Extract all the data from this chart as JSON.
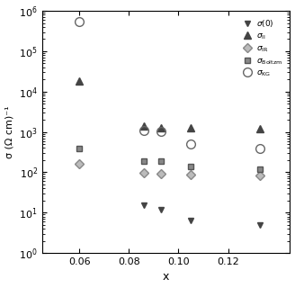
{
  "title": "",
  "xlabel": "x",
  "ylabel": "σ (Ω cm)⁻¹",
  "xlim": [
    0.045,
    0.145
  ],
  "ylim": [
    1.0,
    1000000.0
  ],
  "xticks": [
    0.06,
    0.08,
    0.1,
    0.12
  ],
  "series": {
    "sigma0": {
      "marker": "v",
      "markerfacecolor": "#444444",
      "markeredgecolor": "#444444",
      "markersize": 5,
      "x": [
        0.086,
        0.093,
        0.105,
        0.133
      ],
      "y": [
        15,
        12,
        6.5,
        5
      ]
    },
    "sigma_II": {
      "marker": "^",
      "markerfacecolor": "#444444",
      "markeredgecolor": "#444444",
      "markersize": 6,
      "x": [
        0.06,
        0.086,
        0.093,
        0.105,
        0.133
      ],
      "y": [
        18000,
        1400,
        1250,
        1250,
        1200
      ]
    },
    "sigma_IR": {
      "marker": "D",
      "markerfacecolor": "#bbbbbb",
      "markeredgecolor": "#888888",
      "markersize": 5,
      "x": [
        0.06,
        0.086,
        0.093,
        0.105,
        0.133
      ],
      "y": [
        160,
        95,
        90,
        88,
        82
      ]
    },
    "sigma_Boltzm": {
      "marker": "s",
      "markerfacecolor": "#888888",
      "markeredgecolor": "#555555",
      "markersize": 5,
      "x": [
        0.06,
        0.086,
        0.093,
        0.105,
        0.133
      ],
      "y": [
        380,
        190,
        185,
        140,
        120
      ]
    },
    "sigma_KG": {
      "marker": "o",
      "markerfacecolor": "none",
      "markeredgecolor": "#666666",
      "markersize": 7,
      "x": [
        0.06,
        0.086,
        0.093,
        0.105,
        0.133
      ],
      "y": [
        550000,
        1100,
        1050,
        500,
        380
      ]
    }
  }
}
